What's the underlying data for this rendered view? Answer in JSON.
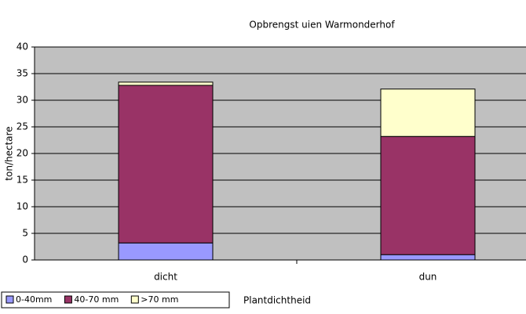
{
  "chart_data": {
    "type": "stacked-bar",
    "title": "Opbrengst uien Warmonderhof",
    "y_label": "ton/hectare",
    "x_label": "Plantdichtheid",
    "categories": [
      "dicht",
      "dun"
    ],
    "series": [
      {
        "name": "0-40mm",
        "color": "#9999ff",
        "values": [
          3.2,
          1.0
        ]
      },
      {
        "name": "40-70 mm",
        "color": "#993366",
        "values": [
          29.6,
          22.2
        ]
      },
      {
        "name": ">70 mm",
        "color": "#ffffcc",
        "values": [
          0.6,
          8.9
        ]
      }
    ],
    "ylim": [
      0,
      40
    ],
    "yticks": [
      0,
      5,
      10,
      15,
      20,
      25,
      30,
      35,
      40
    ],
    "grid": true
  }
}
